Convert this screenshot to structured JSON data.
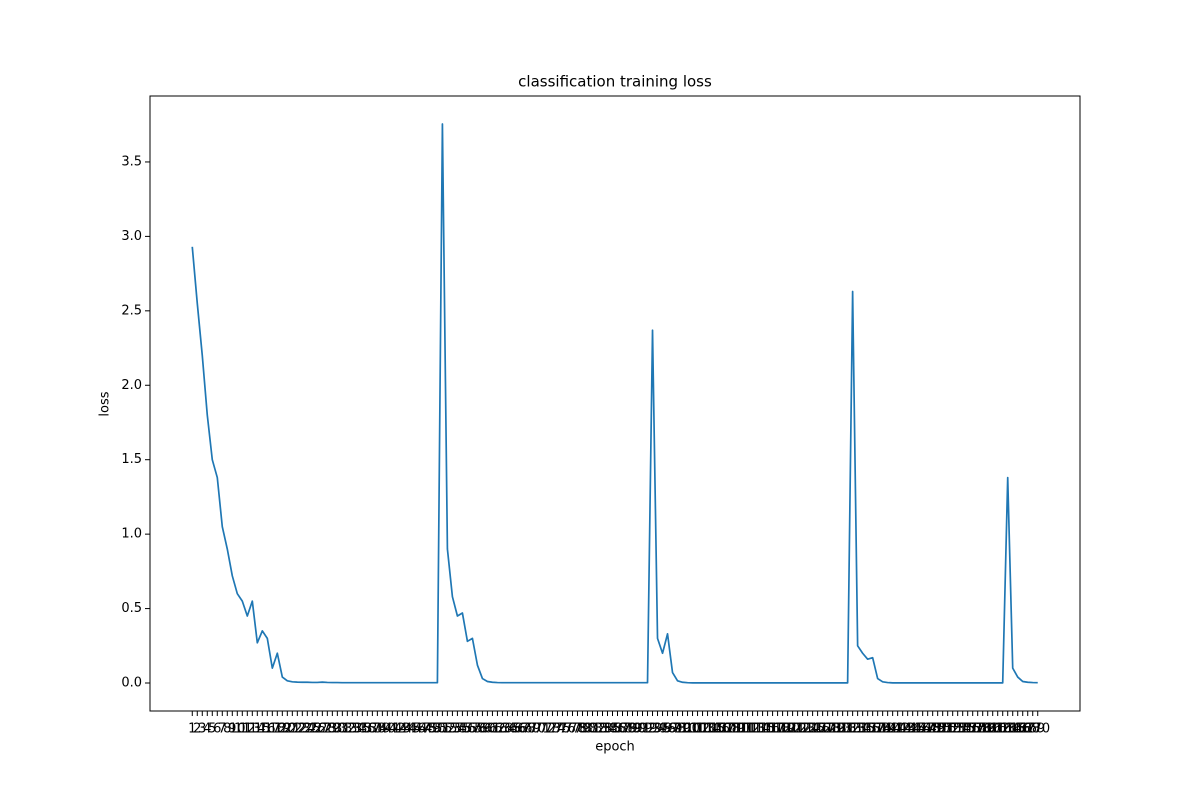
{
  "chart_data": {
    "type": "line",
    "title": "classification training loss",
    "xlabel": "epoch",
    "ylabel": "loss",
    "x": [
      1,
      2,
      3,
      4,
      5,
      6,
      7,
      8,
      9,
      10,
      11,
      12,
      13,
      14,
      15,
      16,
      17,
      18,
      19,
      20,
      21,
      22,
      23,
      24,
      25,
      26,
      27,
      28,
      29,
      30,
      31,
      32,
      33,
      34,
      35,
      36,
      37,
      38,
      39,
      40,
      41,
      42,
      43,
      44,
      45,
      46,
      47,
      48,
      49,
      50,
      51,
      52,
      53,
      54,
      55,
      56,
      57,
      58,
      59,
      60,
      61,
      62,
      63,
      64,
      65,
      66,
      67,
      68,
      69,
      70,
      71,
      72,
      73,
      74,
      75,
      76,
      77,
      78,
      79,
      80,
      81,
      82,
      83,
      84,
      85,
      86,
      87,
      88,
      89,
      90,
      91,
      92,
      93,
      94,
      95,
      96,
      97,
      98,
      99,
      100,
      101,
      102,
      103,
      104,
      105,
      106,
      107,
      108,
      109,
      110,
      111,
      112,
      113,
      114,
      115,
      116,
      117,
      118,
      119,
      120,
      121,
      122,
      123,
      124,
      125,
      126,
      127,
      128,
      129,
      130,
      131,
      132,
      133,
      134,
      135,
      136,
      137,
      138,
      139,
      140,
      141,
      142,
      143,
      144,
      145,
      146,
      147,
      148,
      149,
      150,
      151,
      152,
      153,
      154,
      155,
      156,
      157,
      158,
      159,
      160,
      161,
      162,
      163,
      164,
      165,
      166,
      167,
      168,
      169,
      170
    ],
    "series": [
      {
        "name": "loss",
        "color": "#1f77b4",
        "values": [
          2.93,
          2.55,
          2.2,
          1.8,
          1.5,
          1.38,
          1.05,
          0.9,
          0.72,
          0.6,
          0.55,
          0.45,
          0.55,
          0.27,
          0.35,
          0.3,
          0.1,
          0.2,
          0.04,
          0.015,
          0.008,
          0.006,
          0.005,
          0.005,
          0.004,
          0.004,
          0.006,
          0.004,
          0.003,
          0.003,
          0.002,
          0.002,
          0.002,
          0.002,
          0.002,
          0.002,
          0.002,
          0.002,
          0.002,
          0.002,
          0.002,
          0.002,
          0.002,
          0.002,
          0.002,
          0.002,
          0.002,
          0.002,
          0.002,
          0.002,
          3.755,
          0.9,
          0.58,
          0.45,
          0.47,
          0.28,
          0.3,
          0.12,
          0.03,
          0.01,
          0.005,
          0.003,
          0.002,
          0.002,
          0.002,
          0.002,
          0.002,
          0.002,
          0.002,
          0.002,
          0.002,
          0.002,
          0.002,
          0.002,
          0.002,
          0.002,
          0.002,
          0.002,
          0.002,
          0.002,
          0.002,
          0.002,
          0.002,
          0.002,
          0.002,
          0.002,
          0.002,
          0.002,
          0.002,
          0.002,
          0.002,
          0.002,
          2.37,
          0.3,
          0.2,
          0.33,
          0.07,
          0.015,
          0.005,
          0.002,
          0.001,
          0.001,
          0.001,
          0.001,
          0.001,
          0.001,
          0.001,
          0.001,
          0.001,
          0.001,
          0.001,
          0.001,
          0.001,
          0.001,
          0.001,
          0.001,
          0.001,
          0.001,
          0.001,
          0.001,
          0.001,
          0.001,
          0.001,
          0.001,
          0.001,
          0.001,
          0.001,
          0.001,
          0.001,
          0.001,
          0.001,
          0.001,
          2.63,
          0.25,
          0.2,
          0.16,
          0.17,
          0.03,
          0.008,
          0.003,
          0.001,
          0.001,
          0.001,
          0.001,
          0.001,
          0.001,
          0.001,
          0.001,
          0.001,
          0.001,
          0.001,
          0.001,
          0.001,
          0.001,
          0.001,
          0.001,
          0.001,
          0.001,
          0.001,
          0.001,
          0.001,
          0.001,
          0.001,
          1.38,
          0.1,
          0.04,
          0.01,
          0.005,
          0.003,
          0.002
        ]
      }
    ],
    "xlim": [
      -7.45,
      178.45
    ],
    "ylim": [
      -0.188,
      3.943
    ],
    "yticks": [
      {
        "value": 0,
        "label": "0.0"
      },
      0.5,
      {
        "value": 1,
        "label": "1.0"
      },
      1.5,
      {
        "value": 2,
        "label": "2.0"
      },
      2.5,
      {
        "value": 3,
        "label": "3.0"
      },
      3.5
    ],
    "grid": false
  }
}
